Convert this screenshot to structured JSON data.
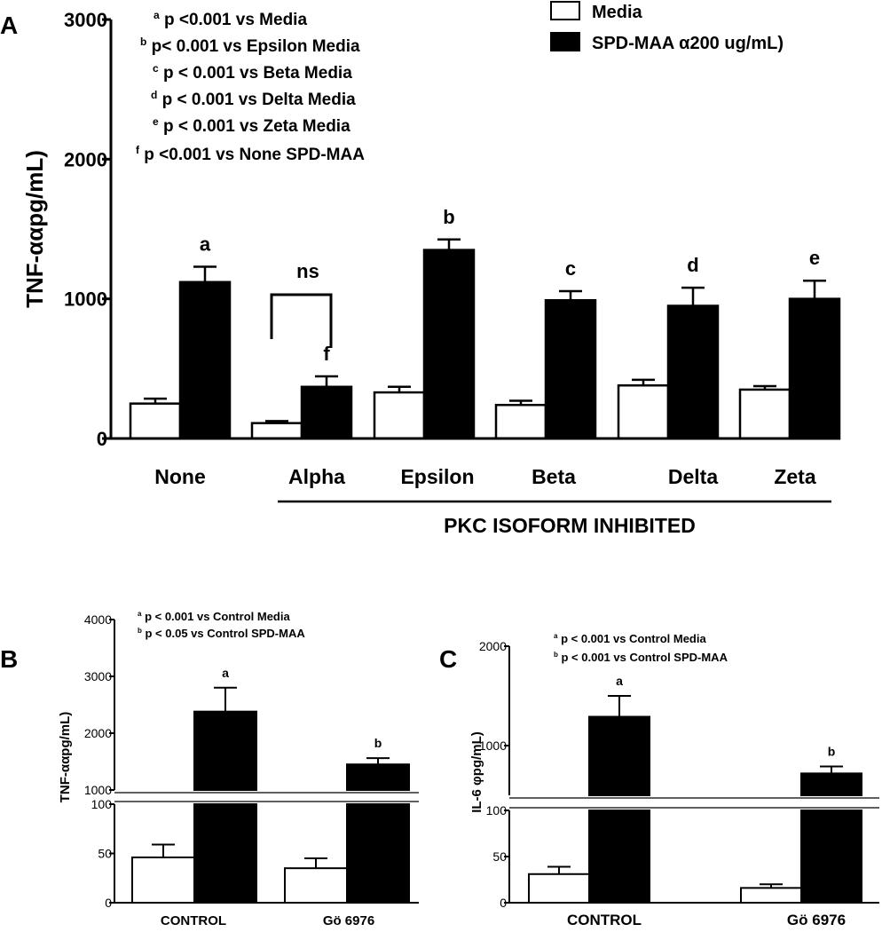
{
  "chart_data": [
    {
      "panel": "A",
      "type": "bar",
      "ylabel": "TNF-ααpg/mL)",
      "ylim": [
        0,
        3000
      ],
      "yticks": [
        0,
        1000,
        2000,
        3000
      ],
      "categories": [
        "None",
        "Alpha",
        "Epsilon",
        "Beta",
        "Delta",
        "Zeta"
      ],
      "series": [
        {
          "name": "Media",
          "color": "#ffffff",
          "values": [
            250,
            110,
            330,
            240,
            380,
            350
          ],
          "errors": [
            35,
            15,
            40,
            30,
            40,
            25
          ]
        },
        {
          "name": "SPD-MAA α200 ug/mL)",
          "color": "#000000",
          "values": [
            1120,
            370,
            1350,
            990,
            950,
            1000
          ],
          "errors": [
            110,
            75,
            75,
            65,
            130,
            130
          ]
        }
      ],
      "bar_labels": [
        "a",
        "f",
        "b",
        "c",
        "d",
        "e"
      ],
      "ns_label": "ns",
      "group_label": "PKC ISOFORM INHIBITED",
      "footnotes": [
        {
          "sup": "a",
          "text": " p <0.001 vs Media"
        },
        {
          "sup": "b",
          "text": " p< 0.001 vs Epsilon Media"
        },
        {
          "sup": "c",
          "text": " p < 0.001 vs Beta Media"
        },
        {
          "sup": "d",
          "text": " p < 0.001 vs Delta Media"
        },
        {
          "sup": "e",
          "text": " p < 0.001 vs Zeta Media"
        },
        {
          "sup": "f",
          "text": " p <0.001 vs None SPD-MAA"
        }
      ]
    },
    {
      "panel": "B",
      "type": "bar",
      "ylabel": "TNF-ααpg/mL)",
      "axis_break": {
        "lower": [
          0,
          100
        ],
        "upper": [
          1000,
          4000
        ]
      },
      "yticks_lower": [
        0,
        50,
        100
      ],
      "yticks_upper": [
        1000,
        2000,
        3000,
        4000
      ],
      "categories": [
        "CONTROL",
        "Gö 6976"
      ],
      "series": [
        {
          "name": "Media",
          "color": "#ffffff",
          "values": [
            46,
            35
          ],
          "errors": [
            13,
            10
          ]
        },
        {
          "name": "SPD-MAA",
          "color": "#000000",
          "values": [
            2380,
            1450
          ],
          "errors": [
            420,
            110
          ]
        }
      ],
      "bar_labels": [
        "a",
        "b"
      ],
      "footnotes": [
        {
          "sup": "a",
          "text": " p < 0.001 vs Control Media"
        },
        {
          "sup": "b",
          "text": " p < 0.05 vs  Control SPD-MAA"
        }
      ]
    },
    {
      "panel": "C",
      "type": "bar",
      "ylabel": "IL-6 φpg/mL)",
      "axis_break": {
        "lower": [
          0,
          100
        ],
        "upper": [
          500,
          2000
        ]
      },
      "yticks_lower": [
        0,
        50,
        100
      ],
      "yticks_upper": [
        1000,
        2000
      ],
      "categories": [
        "CONTROL",
        "Gö 6976"
      ],
      "series": [
        {
          "name": "Media",
          "color": "#ffffff",
          "values": [
            31,
            16
          ],
          "errors": [
            8,
            4
          ]
        },
        {
          "name": "SPD-MAA",
          "color": "#000000",
          "values": [
            1290,
            720
          ],
          "errors": [
            210,
            70
          ]
        }
      ],
      "bar_labels": [
        "a",
        "b"
      ],
      "footnotes": [
        {
          "sup": "a",
          "text": " p < 0.001 vs Control Media"
        },
        {
          "sup": "b",
          "text": " p < 0.001 vs  Control SPD-MAA"
        }
      ]
    }
  ]
}
